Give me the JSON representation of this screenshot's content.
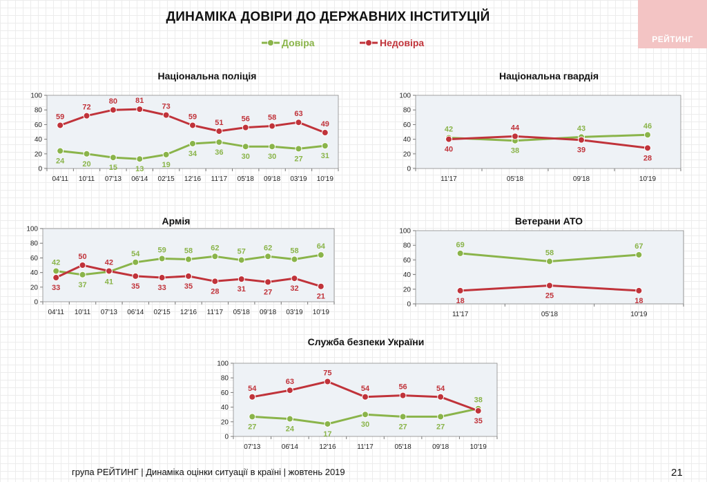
{
  "header": {
    "title": "ДИНАМІКА ДОВІРИ ДО ДЕРЖАВНИХ ІНСТИТУЦІЙ",
    "logo_text": "РЕЙТИНГ"
  },
  "legend": {
    "trust": "Довіра",
    "distrust": "Недовіра"
  },
  "colors": {
    "trust": "#8ab44a",
    "distrust": "#c0333a",
    "plot_bg": "#eef2f6"
  },
  "chart_data": [
    {
      "type": "line",
      "title": "Національна поліція",
      "categories": [
        "04'11",
        "10'11",
        "07'13",
        "06'14",
        "02'15",
        "12'16",
        "11'17",
        "05'18",
        "09'18",
        "03'19",
        "10'19"
      ],
      "series": [
        {
          "name": "Довіра",
          "values": [
            24,
            20,
            15,
            13,
            19,
            34,
            36,
            30,
            30,
            27,
            31
          ]
        },
        {
          "name": "Недовіра",
          "values": [
            59,
            72,
            80,
            81,
            73,
            59,
            51,
            56,
            58,
            63,
            49
          ]
        }
      ],
      "ylim": [
        0,
        100
      ],
      "yticks": [
        0,
        20,
        40,
        60,
        80,
        100
      ]
    },
    {
      "type": "line",
      "title": "Національна гвардія",
      "categories": [
        "11'17",
        "05'18",
        "09'18",
        "10'19"
      ],
      "series": [
        {
          "name": "Довіра",
          "values": [
            42,
            38,
            43,
            46
          ]
        },
        {
          "name": "Недовіра",
          "values": [
            40,
            44,
            39,
            28
          ]
        }
      ],
      "ylim": [
        0,
        100
      ],
      "yticks": [
        0,
        20,
        40,
        60,
        80,
        100
      ]
    },
    {
      "type": "line",
      "title": "Армія",
      "categories": [
        "04'11",
        "10'11",
        "07'13",
        "06'14",
        "02'15",
        "12'16",
        "11'17",
        "05'18",
        "09'18",
        "03'19",
        "10'19"
      ],
      "series": [
        {
          "name": "Довіра",
          "values": [
            42,
            37,
            41,
            54,
            59,
            58,
            62,
            57,
            62,
            58,
            64
          ]
        },
        {
          "name": "Недовіра",
          "values": [
            33,
            50,
            42,
            35,
            33,
            35,
            28,
            31,
            27,
            32,
            21
          ]
        }
      ],
      "ylim": [
        0,
        100
      ],
      "yticks": [
        0,
        20,
        40,
        60,
        80,
        100
      ]
    },
    {
      "type": "line",
      "title": "Ветерани АТО",
      "categories": [
        "11'17",
        "05'18",
        "10'19"
      ],
      "series": [
        {
          "name": "Довіра",
          "values": [
            69,
            58,
            67
          ]
        },
        {
          "name": "Недовіра",
          "values": [
            18,
            25,
            18
          ]
        }
      ],
      "ylim": [
        0,
        100
      ],
      "yticks": [
        0,
        20,
        40,
        60,
        80,
        100
      ]
    },
    {
      "type": "line",
      "title": "Служба безпеки України",
      "categories": [
        "07'13",
        "06'14",
        "12'16",
        "11'17",
        "05'18",
        "09'18",
        "10'19"
      ],
      "series": [
        {
          "name": "Довіра",
          "values": [
            27,
            24,
            17,
            30,
            27,
            27,
            38
          ]
        },
        {
          "name": "Недовіра",
          "values": [
            54,
            63,
            75,
            54,
            56,
            54,
            35
          ]
        }
      ],
      "ylim": [
        0,
        100
      ],
      "yticks": [
        0,
        20,
        40,
        60,
        80,
        100
      ]
    }
  ],
  "footer": {
    "text": "група РЕЙТИНГ | Динаміка оцінки ситуації в країні | жовтень 2019",
    "page": "21"
  }
}
